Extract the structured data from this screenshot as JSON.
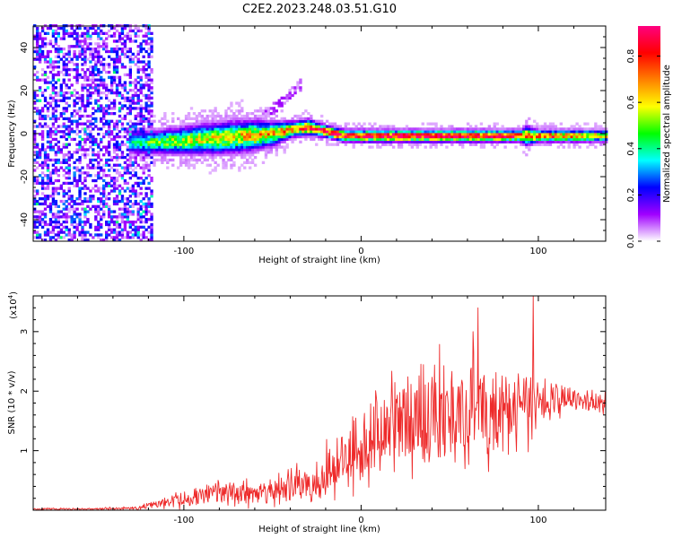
{
  "figure": {
    "title": "C2E2.2023.248.03.51.G10"
  },
  "colorbar": {
    "label": "Normalized spectral amplitude",
    "ticks": [
      "0.0",
      "0.2",
      "0.4",
      "0.6",
      "0.8"
    ],
    "tick_values": [
      0.0,
      0.2,
      0.4,
      0.6,
      0.8
    ],
    "range": [
      0.0,
      0.93
    ],
    "colors": [
      "#ffffff",
      "#a000ff",
      "#0000ff",
      "#00ffff",
      "#00ff00",
      "#ffff00",
      "#ff8000",
      "#ff0000",
      "#ff0080"
    ]
  },
  "chart_data": [
    {
      "type": "heatmap",
      "name": "spectrogram",
      "xlabel": "Height of straight line (km)",
      "ylabel": "Frequency (Hz)",
      "xlim": [
        -185,
        138
      ],
      "ylim": [
        -50,
        50
      ],
      "xticks": [
        -100,
        0,
        100
      ],
      "xtick_labels": [
        "-100",
        "0",
        "100"
      ],
      "yticks": [
        -40,
        -20,
        0,
        20,
        40
      ],
      "ytick_labels": [
        "-40",
        "-20",
        "0",
        "20",
        "40"
      ],
      "noise_region": {
        "x": [
          -185,
          -118
        ],
        "level": 0.3
      },
      "band": {
        "x": [
          -132,
          -120,
          -100,
          -80,
          -65,
          -50,
          -40,
          -30,
          -20,
          -10,
          0,
          20,
          40,
          60,
          80,
          90,
          92,
          100,
          120,
          138
        ],
        "center": [
          -4,
          -4,
          -3,
          -2,
          -1,
          0,
          2,
          3,
          1,
          -1,
          -1,
          -1,
          -1,
          -1,
          -1,
          -1,
          -1,
          -1,
          -1,
          -1
        ],
        "half_width": [
          6,
          6,
          7,
          8,
          8,
          6,
          4,
          4,
          3,
          3,
          3,
          3,
          3,
          3,
          3,
          3,
          5,
          3,
          3,
          3
        ],
        "peak_amplitude": [
          0.35,
          0.45,
          0.55,
          0.6,
          0.62,
          0.65,
          0.72,
          0.8,
          0.85,
          0.88,
          0.9,
          0.9,
          0.9,
          0.9,
          0.85,
          0.8,
          0.7,
          0.75,
          0.7,
          0.6
        ]
      },
      "streak": {
        "x": [
          -60,
          -35
        ],
        "y": [
          4,
          22
        ]
      }
    },
    {
      "type": "line",
      "name": "snr",
      "xlabel": "Height of straight line (km)",
      "ylabel": "SNR (10 * v/v)",
      "scale_label_base": "(x10",
      "scale_label_exp": "4",
      "scale_label_close": ")",
      "xlim": [
        -185,
        138
      ],
      "ylim": [
        0,
        3.6
      ],
      "xticks": [
        -100,
        0,
        100
      ],
      "xtick_labels": [
        "-100",
        "0",
        "100"
      ],
      "yticks": [
        1,
        2,
        3
      ],
      "ytick_labels": [
        "1",
        "2",
        "3"
      ],
      "color": "#ee2a2a",
      "series": [
        {
          "x": [
            -185,
            -150,
            -125,
            -115,
            -100,
            -90,
            -80,
            -70,
            -60,
            -50,
            -40,
            -30,
            -20,
            -10,
            0,
            10,
            20,
            30,
            40,
            50,
            60,
            70,
            80,
            90,
            95,
            100,
            110,
            120,
            138
          ],
          "mean": [
            0.02,
            0.02,
            0.04,
            0.1,
            0.18,
            0.24,
            0.28,
            0.3,
            0.3,
            0.32,
            0.38,
            0.45,
            0.6,
            0.85,
            1.1,
            1.3,
            1.45,
            1.55,
            1.6,
            1.65,
            1.65,
            1.65,
            1.6,
            1.65,
            1.7,
            1.8,
            1.85,
            1.85,
            1.8
          ],
          "spread": [
            0.02,
            0.02,
            0.05,
            0.1,
            0.2,
            0.25,
            0.3,
            0.3,
            0.3,
            0.32,
            0.35,
            0.45,
            0.6,
            0.75,
            0.9,
            1.0,
            1.05,
            1.1,
            1.15,
            1.2,
            1.2,
            1.15,
            1.05,
            0.9,
            0.8,
            0.5,
            0.35,
            0.3,
            0.25
          ]
        }
      ],
      "spikes": [
        {
          "x": 97,
          "y": 3.6
        },
        {
          "x": 66,
          "y": 3.4
        },
        {
          "x": 63,
          "y": 3.0
        }
      ]
    }
  ]
}
